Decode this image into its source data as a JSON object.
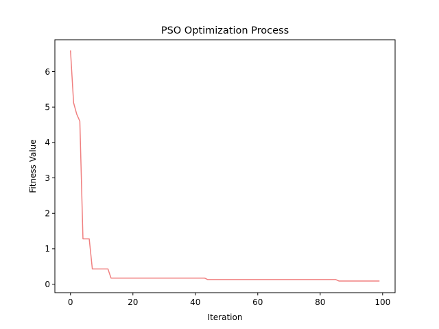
{
  "chart_data": {
    "type": "line",
    "title": "PSO Optimization Process",
    "xlabel": "Iteration",
    "ylabel": "Fitness Value",
    "xlim": [
      -5,
      104
    ],
    "ylim": [
      -0.24,
      6.9
    ],
    "xticks": [
      0,
      20,
      40,
      60,
      80,
      100
    ],
    "yticks": [
      0,
      1,
      2,
      3,
      4,
      5,
      6
    ],
    "grid": false,
    "series": [
      {
        "color": "#f08080",
        "x": [
          0,
          1,
          2,
          3,
          4,
          5,
          6,
          7,
          12,
          13,
          43,
          44,
          85,
          86,
          99
        ],
        "y": [
          6.6,
          5.12,
          4.8,
          4.6,
          1.28,
          1.28,
          1.28,
          0.43,
          0.43,
          0.17,
          0.17,
          0.13,
          0.13,
          0.09,
          0.09
        ]
      }
    ]
  }
}
